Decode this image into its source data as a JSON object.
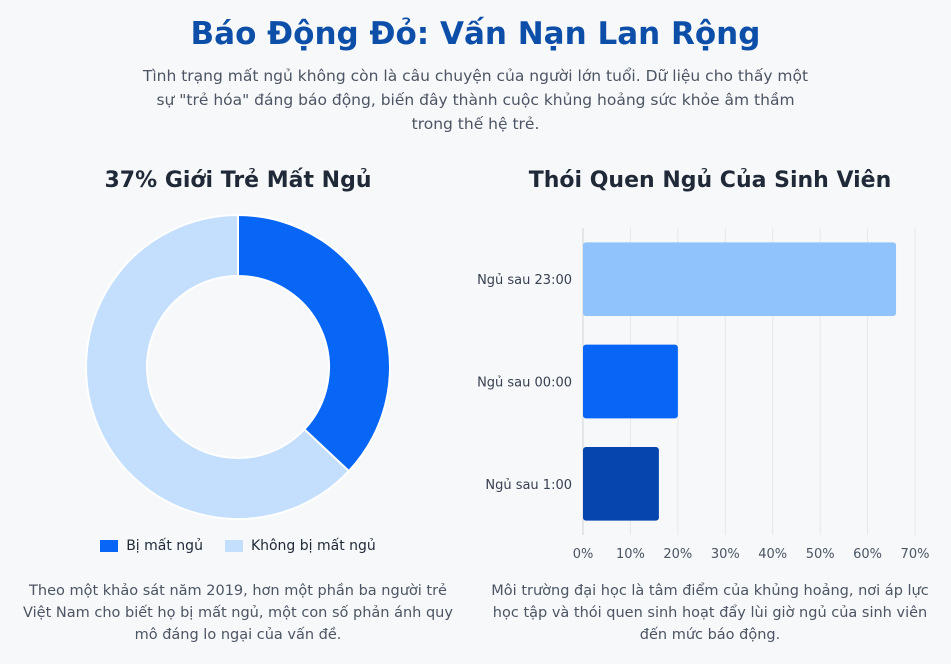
{
  "header": {
    "title": "Báo Động Đỏ: Vấn Nạn Lan Rộng",
    "subtitle": "Tình trạng mất ngủ không còn là câu chuyện của người lớn tuổi. Dữ liệu cho thấy một sự \"trẻ hóa\" đáng báo động, biến đây thành cuộc khủng hoảng sức khỏe âm thầm trong thế hệ trẻ."
  },
  "left_panel": {
    "title": "37% Giới Trẻ Mất Ngủ",
    "legend": [
      "Bị mất ngủ",
      "Không bị mất ngủ"
    ],
    "caption": "Theo một khảo sát năm 2019, hơn một phần ba người trẻ Việt Nam cho biết họ bị mất ngủ, một con số phản ánh quy mô đáng lo ngại của vấn đề."
  },
  "right_panel": {
    "title": "Thói Quen Ngủ Của Sinh Viên",
    "caption": "Môi trường đại học là tâm điểm của khủng hoảng, nơi áp lực học tập và thói quen sinh hoạt đẩy lùi giờ ngủ của sinh viên đến mức báo động."
  },
  "colors": {
    "title": "#0d4fa8",
    "primary": "#0866f7",
    "light": "#c3dffd",
    "bar1": "#90c2fb",
    "bar2": "#0866f7",
    "bar3": "#0545ad",
    "grid": "#e5e7eb"
  },
  "chart_data": [
    {
      "type": "pie",
      "title": "37% Giới Trẻ Mất Ngủ",
      "labels": [
        "Bị mất ngủ",
        "Không bị mất ngủ"
      ],
      "values": [
        37,
        63
      ],
      "donut": true,
      "legend": "bottom"
    },
    {
      "type": "bar",
      "orientation": "horizontal",
      "title": "Thói Quen Ngủ Của Sinh Viên",
      "categories": [
        "Ngủ sau 23:00",
        "Ngủ sau 00:00",
        "Ngủ sau 1:00"
      ],
      "values": [
        66,
        20,
        16
      ],
      "xlim": [
        0,
        70
      ],
      "xticks": [
        "0%",
        "10%",
        "20%",
        "30%",
        "40%",
        "50%",
        "60%",
        "70%"
      ],
      "grid": true
    }
  ]
}
